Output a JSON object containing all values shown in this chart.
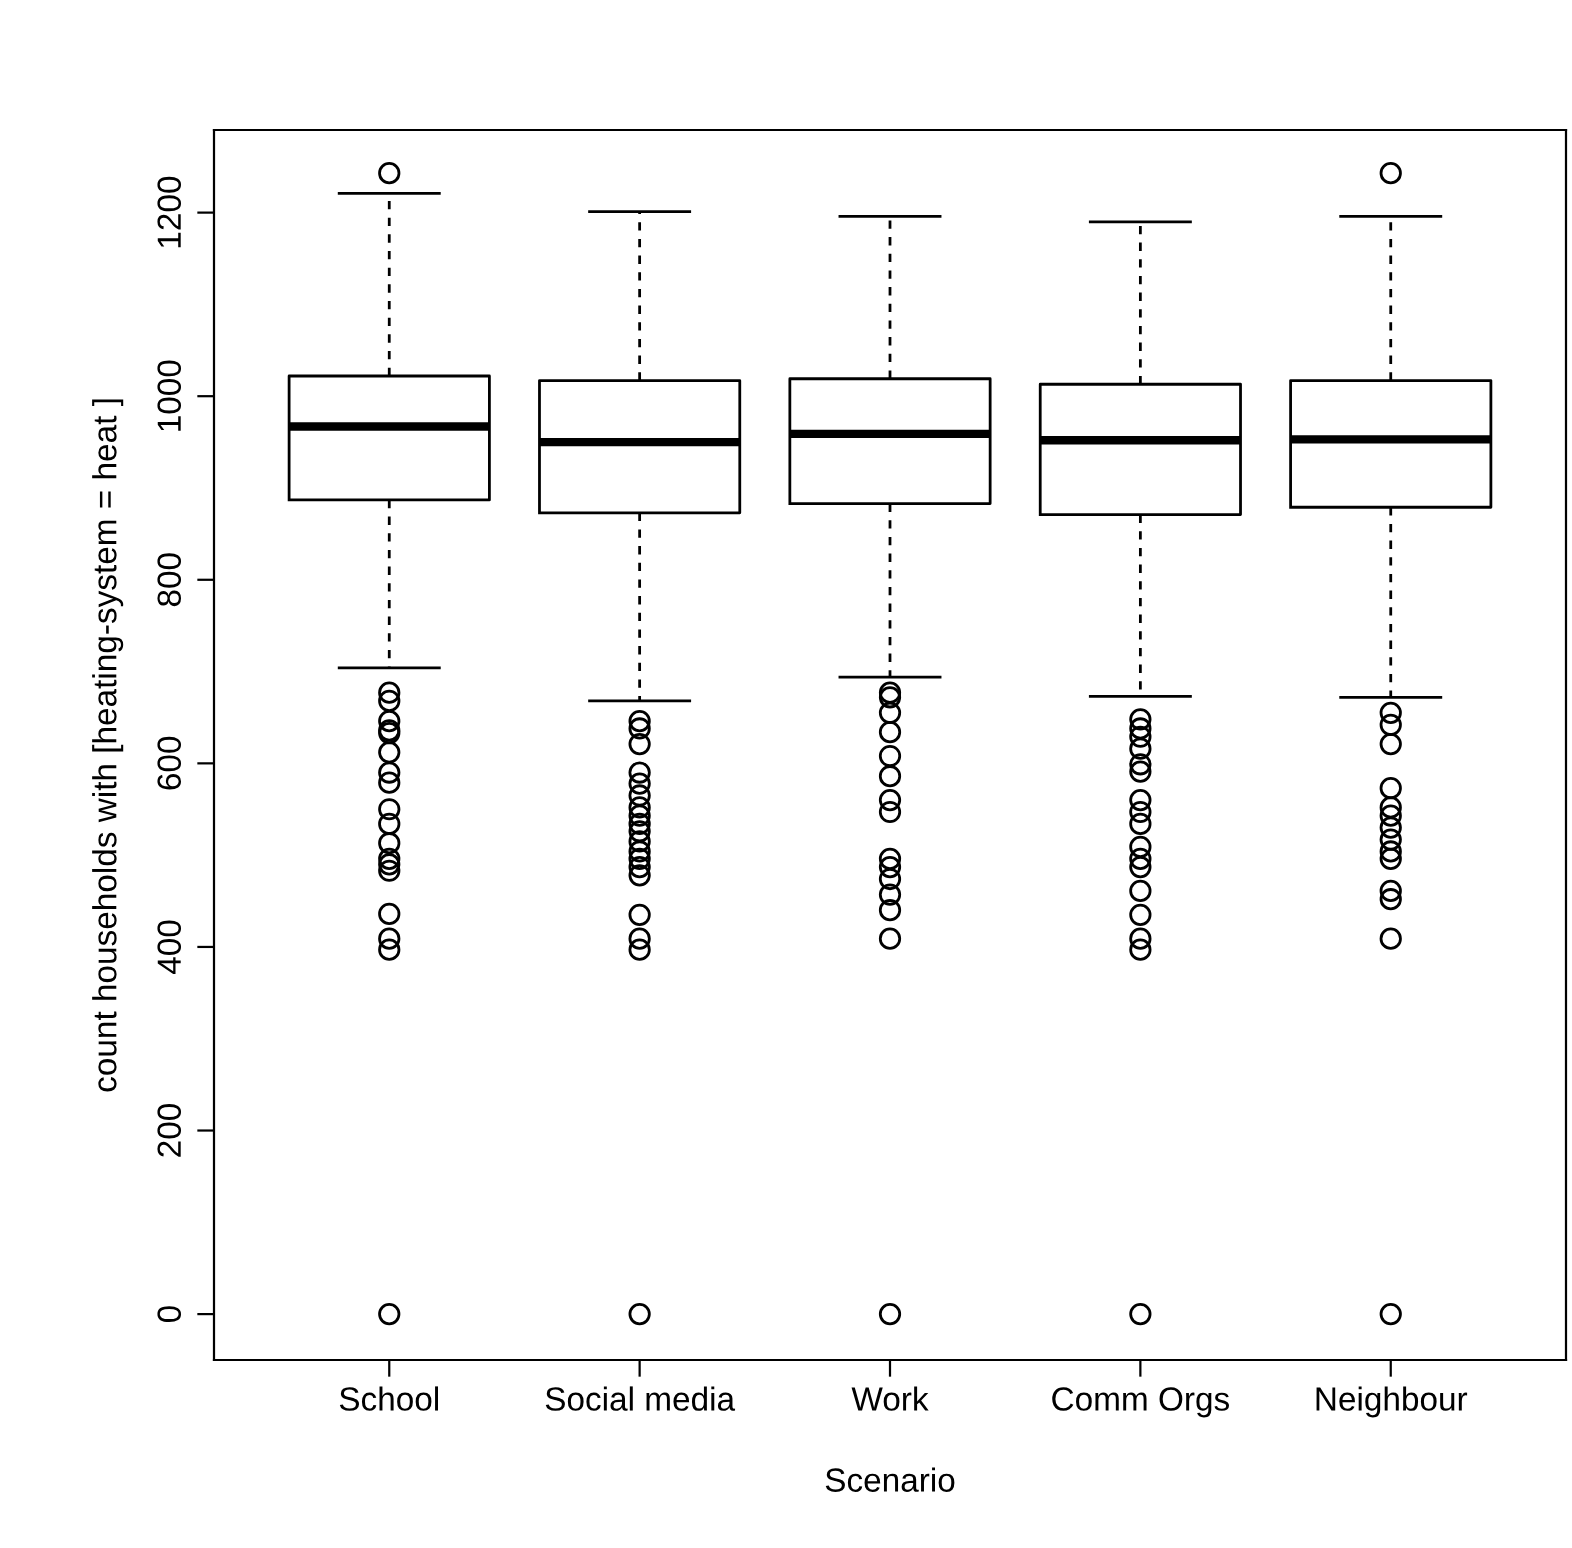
{
  "chart_data": {
    "type": "box",
    "xlabel": "Scenario",
    "ylabel": "count households with [heating-system = heat ]",
    "categories": [
      "School",
      "Social media",
      "Work",
      "Comm Orgs",
      "Neighbour"
    ],
    "ylim": [
      -50,
      1290
    ],
    "yticks": [
      0,
      200,
      400,
      600,
      800,
      1000,
      1200
    ],
    "grid": false,
    "marker": "circle",
    "boxes": [
      {
        "low": 704,
        "q1": 887,
        "median": 967,
        "q3": 1022,
        "high": 1221,
        "outliers": [
          1243,
          677,
          668,
          646,
          636,
          633,
          612,
          590,
          579,
          550,
          534,
          513,
          496,
          490,
          483,
          436,
          409,
          397,
          0
        ]
      },
      {
        "low": 668,
        "q1": 873,
        "median": 950,
        "q3": 1017,
        "high": 1201,
        "outliers": [
          646,
          638,
          621,
          590,
          578,
          565,
          552,
          543,
          534,
          526,
          515,
          504,
          496,
          487,
          478,
          435,
          409,
          397,
          0
        ]
      },
      {
        "low": 694,
        "q1": 883,
        "median": 959,
        "q3": 1019,
        "high": 1196,
        "outliers": [
          677,
          672,
          655,
          634,
          608,
          586,
          560,
          547,
          496,
          487,
          474,
          457,
          440,
          409,
          0
        ]
      },
      {
        "low": 673,
        "q1": 871,
        "median": 952,
        "q3": 1013,
        "high": 1190,
        "outliers": [
          648,
          638,
          629,
          616,
          599,
          591,
          560,
          547,
          534,
          509,
          496,
          487,
          461,
          435,
          409,
          397,
          0
        ]
      },
      {
        "low": 672,
        "q1": 879,
        "median": 953,
        "q3": 1017,
        "high": 1196,
        "outliers": [
          1243,
          655,
          642,
          621,
          573,
          552,
          543,
          530,
          517,
          504,
          496,
          461,
          452,
          409,
          0
        ]
      }
    ]
  }
}
